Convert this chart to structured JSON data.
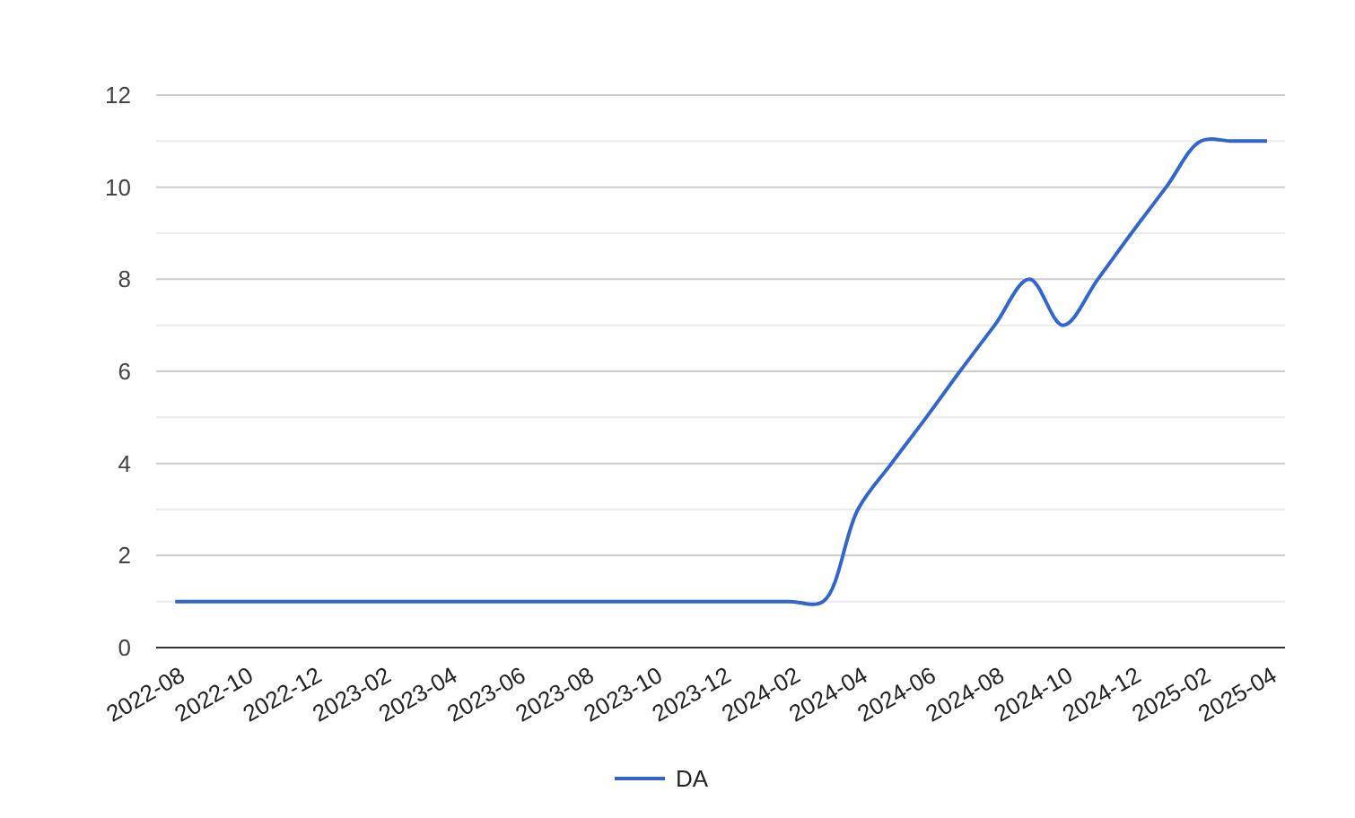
{
  "chart_data": {
    "type": "line",
    "x": [
      "2022-08",
      "2022-09",
      "2022-10",
      "2022-11",
      "2022-12",
      "2023-01",
      "2023-02",
      "2023-03",
      "2023-04",
      "2023-05",
      "2023-06",
      "2023-07",
      "2023-08",
      "2023-09",
      "2023-10",
      "2023-11",
      "2023-12",
      "2024-01",
      "2024-02",
      "2024-03",
      "2024-04",
      "2024-05",
      "2024-06",
      "2024-07",
      "2024-08",
      "2024-09",
      "2024-10",
      "2024-11",
      "2024-12",
      "2025-01",
      "2025-02",
      "2025-03",
      "2025-04"
    ],
    "series": [
      {
        "name": "DA",
        "color": "#3366cc",
        "values": [
          1,
          1,
          1,
          1,
          1,
          1,
          1,
          1,
          1,
          1,
          1,
          1,
          1,
          1,
          1,
          1,
          1,
          1,
          1,
          1,
          3,
          4,
          5,
          6,
          7,
          8,
          7,
          8,
          9,
          10,
          11,
          11,
          11
        ]
      }
    ],
    "xlim": [
      "2022-07-15",
      "2025-04-17"
    ],
    "xticks": [
      "2022-08",
      "2022-10",
      "2022-12",
      "2023-02",
      "2023-04",
      "2023-06",
      "2023-08",
      "2023-10",
      "2023-12",
      "2024-02",
      "2024-04",
      "2024-06",
      "2024-08",
      "2024-10",
      "2024-12",
      "2025-02",
      "2025-04"
    ],
    "ylim": [
      0,
      12
    ],
    "yticks": [
      0,
      {
        "value": 1,
        "label": null
      },
      2,
      {
        "value": 3,
        "label": null
      },
      4,
      {
        "value": 5,
        "label": null
      },
      6,
      {
        "value": 7,
        "label": null
      },
      8,
      {
        "value": 9,
        "label": null
      },
      10,
      {
        "value": 11,
        "label": null
      },
      12
    ],
    "grid": "y",
    "legend": "bottom",
    "marker": "none",
    "line_style": "solid"
  }
}
